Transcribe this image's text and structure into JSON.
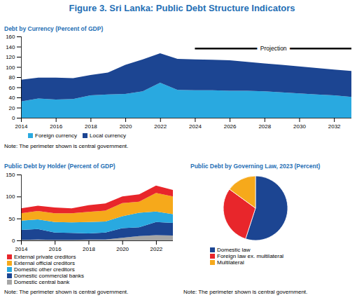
{
  "title": "Figure 3. Sri Lanka: Public Debt Structure Indicators",
  "chart_data": [
    {
      "type": "area",
      "title": "Debt by Currency (Percent of GDP)",
      "stacked": true,
      "grid": false,
      "legend": "bottom",
      "note": "Note: The perimeter shown is central government.",
      "x": [
        2014,
        2015,
        2016,
        2017,
        2018,
        2019,
        2020,
        2021,
        2022,
        2023,
        2024,
        2025,
        2026,
        2027,
        2028,
        2029,
        2030,
        2031,
        2032,
        2033
      ],
      "series": [
        {
          "name": "Foreign currency",
          "color": "#29a9e0",
          "values": [
            32,
            38,
            36,
            37,
            44,
            46,
            47,
            52,
            69,
            55,
            54,
            54,
            53,
            53,
            52,
            50,
            48,
            46,
            44,
            41
          ]
        },
        {
          "name": "Local currency",
          "color": "#1c4592",
          "values": [
            43,
            41,
            43,
            41,
            40,
            43,
            57,
            63,
            58,
            61,
            61,
            60,
            60,
            57,
            55,
            54,
            53,
            52,
            51,
            51
          ]
        }
      ],
      "xlim": [
        2014,
        2033
      ],
      "xticks": [
        2014,
        2016,
        2018,
        2020,
        2022,
        2024,
        2026,
        2028,
        2030,
        2032
      ],
      "ylim": [
        0,
        160
      ],
      "yticks": [
        0,
        20,
        40,
        60,
        80,
        100,
        120,
        140,
        160
      ],
      "annotations": [
        {
          "text": "Projection",
          "x": [
            2024,
            2033
          ],
          "y": 137
        }
      ]
    },
    {
      "type": "area",
      "title": "Public Debt by Holder (Percent of GDP)",
      "stacked": true,
      "grid": false,
      "legend": "bottom",
      "note": "Note: The perimeter shown is central government.",
      "x": [
        2014,
        2015,
        2016,
        2017,
        2018,
        2019,
        2020,
        2021,
        2022,
        2023
      ],
      "series": [
        {
          "name": "Domestic central bank",
          "color": "#a6a6a6",
          "values": [
            1,
            2,
            1,
            1,
            2,
            2,
            6,
            10,
            12,
            11
          ]
        },
        {
          "name": "Domestic commercial banks",
          "color": "#1c4592",
          "values": [
            23,
            24,
            17,
            16,
            14,
            16,
            22,
            20,
            30,
            29
          ]
        },
        {
          "name": "Domestic other creditors",
          "color": "#29a9e0",
          "values": [
            21,
            22,
            24,
            24,
            26,
            25,
            27,
            33,
            24,
            20
          ]
        },
        {
          "name": "External official creditors",
          "color": "#f6a91b",
          "values": [
            17,
            19,
            20,
            21,
            23,
            25,
            30,
            25,
            42,
            40
          ]
        },
        {
          "name": "External private creditors",
          "color": "#e8262b",
          "values": [
            11,
            12,
            13,
            11,
            15,
            16,
            15,
            17,
            17,
            15
          ]
        }
      ],
      "xlim": [
        2014,
        2023
      ],
      "xticks": [
        2014,
        2016,
        2018,
        2020,
        2022
      ],
      "ylim": [
        0,
        150
      ],
      "yticks": [
        0,
        50,
        100,
        150
      ]
    },
    {
      "type": "pie",
      "title": "Public Debt by Governing Law,  2023 (Percent)",
      "legend": "bottom",
      "note": "Note: The perimeter shown is central government.",
      "categories": [
        "Domestic law",
        "Foreign law ex. multilateral",
        "Multilateral"
      ],
      "values": [
        55,
        30,
        15
      ],
      "colors": [
        "#1c4592",
        "#e8262b",
        "#f6a91b"
      ]
    }
  ]
}
